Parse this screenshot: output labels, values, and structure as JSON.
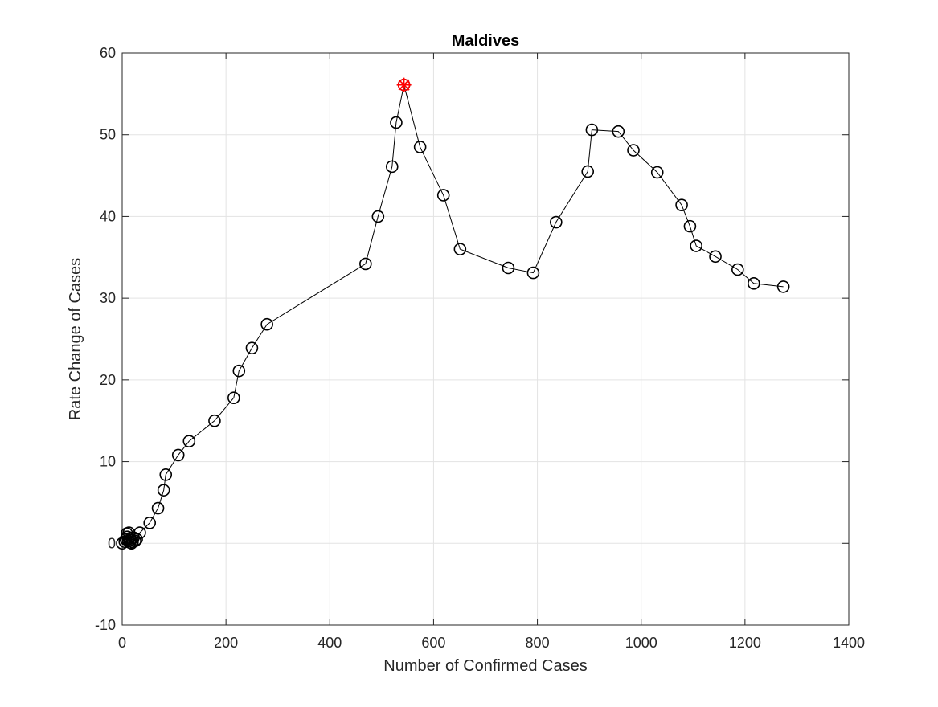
{
  "chart_data": {
    "type": "line",
    "title": "Maldives",
    "xlabel": "Number of Confirmed Cases",
    "ylabel": "Rate Change of Cases",
    "xlim": [
      0,
      1400
    ],
    "ylim": [
      -10,
      60
    ],
    "xticks": [
      0,
      200,
      400,
      600,
      800,
      1000,
      1200,
      1400
    ],
    "yticks": [
      -10,
      0,
      10,
      20,
      30,
      40,
      50,
      60
    ],
    "grid": true,
    "marker": "open-circle",
    "line_color": "#000000",
    "highlight_color": "#ff0000",
    "series": [
      {
        "x": [
          0,
          5,
          7,
          9,
          10,
          12,
          13,
          14,
          15,
          16,
          18,
          20,
          22,
          25,
          28,
          34,
          53,
          69,
          80,
          84,
          108,
          129,
          178,
          215,
          225,
          250,
          279,
          469,
          493,
          520,
          528,
          543,
          574,
          619,
          651,
          744,
          792,
          836,
          897,
          905,
          956,
          985,
          1031,
          1078,
          1094,
          1106,
          1143,
          1186,
          1217,
          1274
        ],
        "y": [
          0,
          0.2,
          0.5,
          1.2,
          0.8,
          0.3,
          1.3,
          0.6,
          0.1,
          0.4,
          0,
          0.2,
          0.7,
          0.3,
          0.5,
          1.3,
          2.5,
          4.3,
          6.5,
          8.4,
          10.8,
          12.5,
          15.0,
          17.8,
          21.1,
          23.9,
          26.8,
          34.2,
          40.0,
          46.1,
          51.5,
          56.1,
          48.5,
          42.6,
          36.0,
          33.7,
          33.1,
          39.3,
          45.5,
          50.6,
          50.4,
          48.1,
          45.4,
          41.4,
          38.8,
          36.4,
          35.1,
          33.5,
          31.8,
          31.4
        ]
      }
    ],
    "highlight_point": {
      "x": 543,
      "y": 56.1
    }
  }
}
